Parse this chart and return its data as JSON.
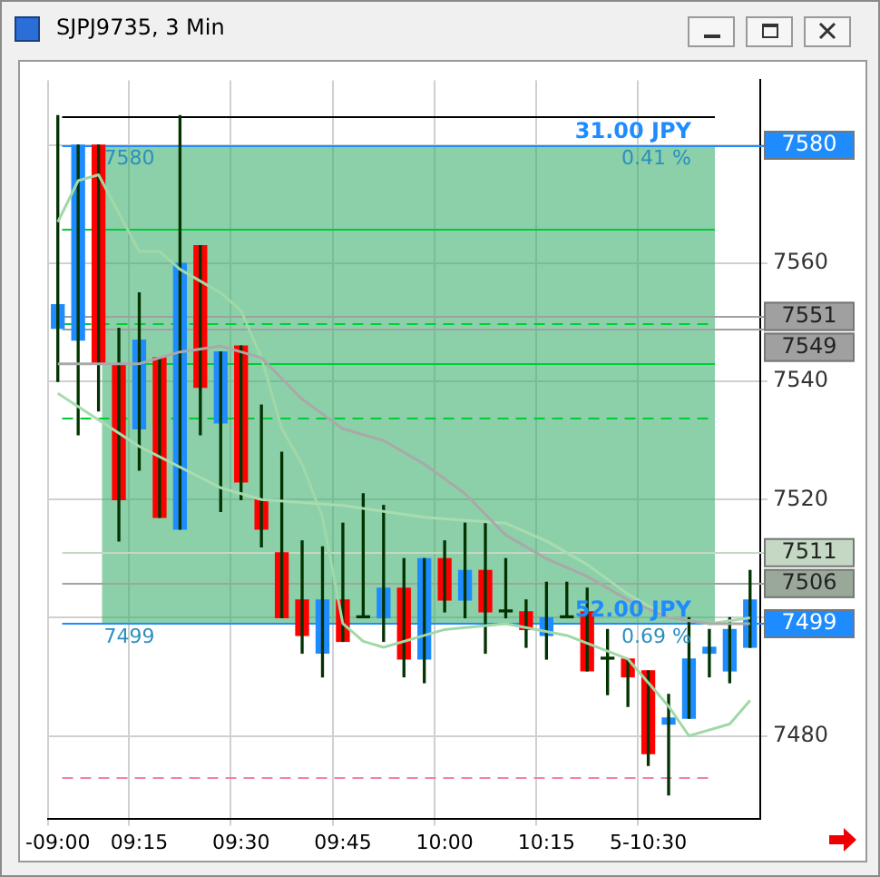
{
  "chart_data": {
    "type": "candlestick",
    "title": "SJPJ9735, 3 Min",
    "categories": [
      "-09:00",
      null,
      null,
      null,
      "09:15",
      null,
      null,
      null,
      null,
      "09:30",
      null,
      null,
      null,
      null,
      "09:45",
      null,
      null,
      null,
      null,
      "10:00",
      null,
      null,
      null,
      null,
      "10:15",
      null,
      null,
      null,
      null,
      "5-10:30",
      null,
      null,
      null,
      null,
      null
    ],
    "ohlc": [
      [
        7549,
        7585,
        7540,
        7553
      ],
      [
        7547,
        7580,
        7531,
        7580
      ],
      [
        7580,
        7580,
        7535,
        7543
      ],
      [
        7543,
        7549,
        7513,
        7520
      ],
      [
        7532,
        7555,
        7525,
        7547
      ],
      [
        7544,
        7544,
        7517,
        7517
      ],
      [
        7515,
        7585,
        7515,
        7560
      ],
      [
        7563,
        7563,
        7531,
        7539
      ],
      [
        7533,
        7545,
        7518,
        7545
      ],
      [
        7546,
        7546,
        7520,
        7523
      ],
      [
        7520,
        7536,
        7512,
        7515
      ],
      [
        7511,
        7528,
        7500,
        7500
      ],
      [
        7503,
        7513,
        7494,
        7497
      ],
      [
        7494,
        7512,
        7490,
        7503
      ],
      [
        7503,
        7516,
        7496,
        7496
      ],
      [
        7500,
        7521,
        7500,
        7500
      ],
      [
        7500,
        7519,
        7496,
        7505
      ],
      [
        7505,
        7510,
        7490,
        7493
      ],
      [
        7493,
        7510,
        7489,
        7510
      ],
      [
        7510,
        7513,
        7501,
        7503
      ],
      [
        7503,
        7516,
        7500,
        7508
      ],
      [
        7508,
        7516,
        7494,
        7501
      ],
      [
        7501,
        7510,
        7500,
        7501
      ],
      [
        7501,
        7503,
        7495,
        7498
      ],
      [
        7497,
        7506,
        7493,
        7500
      ],
      [
        7500,
        7506,
        7500,
        7500
      ],
      [
        7501,
        7505,
        7491,
        7491
      ],
      [
        7493,
        7498,
        7487,
        7493
      ],
      [
        7493,
        7493,
        7485,
        7490
      ],
      [
        7491,
        7491,
        7475,
        7477
      ],
      [
        7482,
        7487,
        7470,
        7483
      ],
      [
        7483,
        7500,
        7483,
        7493
      ],
      [
        7494,
        7498,
        7490,
        7495
      ],
      [
        7491,
        7500,
        7489,
        7498
      ],
      [
        7495,
        7508,
        7495,
        7503
      ]
    ],
    "colors": [
      "#1e8cff",
      "#1e8cff",
      "#ff0000",
      "#ff0000",
      "#1e8cff",
      "#ff0000",
      "#1e8cff",
      "#ff0000",
      "#1e8cff",
      "#ff0000",
      "#ff0000",
      "#ff0000",
      "#ff0000",
      "#1e8cff",
      "#ff0000",
      "#003300",
      "#1e8cff",
      "#ff0000",
      "#1e8cff",
      "#ff0000",
      "#1e8cff",
      "#ff0000",
      "#003300",
      "#ff0000",
      "#1e8cff",
      "#003300",
      "#ff0000",
      "#003300",
      "#ff0000",
      "#ff0000",
      "#1e8cff",
      "#1e8cff",
      "#1e8cff",
      "#1e8cff",
      "#1e8cff"
    ],
    "series": [
      {
        "type": "line",
        "color": "#a9a9a9",
        "values": [
          7543,
          null,
          7543,
          null,
          7543,
          null,
          7545,
          null,
          7546,
          null,
          7544,
          null,
          7537,
          null,
          7532,
          null,
          7530,
          null,
          7526,
          null,
          7521,
          null,
          7514,
          null,
          7510,
          null,
          7507,
          null,
          7503,
          null,
          7500,
          null,
          7499,
          null,
          7499
        ]
      },
      {
        "type": "line",
        "color": "#a8dcb0",
        "values": [
          7538,
          null,
          null,
          null,
          7529,
          null,
          null,
          null,
          7522,
          null,
          7520,
          null,
          null,
          null,
          7519,
          null,
          null,
          null,
          7517,
          null,
          null,
          null,
          7516,
          null,
          7513,
          null,
          7509,
          null,
          7504,
          null,
          7500,
          null,
          7499,
          null,
          7500
        ]
      },
      {
        "type": "line",
        "color": "#a0d8a8",
        "values": [
          7567,
          7574,
          7575,
          null,
          7562,
          7562,
          7559,
          null,
          7555,
          7552,
          7544,
          7532,
          7526,
          7517,
          7499,
          7496,
          7495,
          null,
          null,
          7498,
          null,
          null,
          7499,
          null,
          null,
          7497,
          null,
          null,
          7493,
          null,
          7485,
          7480,
          null,
          7482,
          7486
        ]
      }
    ],
    "ylim": [
      7466,
      7591
    ],
    "yticks": [
      7480,
      {
        "value": 7500,
        "label": null
      },
      7520,
      7540,
      7560,
      {
        "value": 7580,
        "label": null
      }
    ],
    "grid": true,
    "legend": false,
    "marker": "none",
    "bands": [
      {
        "axis": "y",
        "from": 7499,
        "to": 7580,
        "color": "#3fb070"
      }
    ],
    "ref_lines": [
      {
        "axis": "y",
        "value": 7585,
        "color": "#000000"
      },
      {
        "axis": "y",
        "value": 7566,
        "color": "#00cc33"
      },
      {
        "axis": "y",
        "value": 7550,
        "color": "#00cc33",
        "line_style": "dashed"
      },
      {
        "axis": "y",
        "value": 7543,
        "color": "#00cc33"
      },
      {
        "axis": "y",
        "value": 7534,
        "color": "#00cc33",
        "line_style": "dashed"
      },
      {
        "axis": "y",
        "value": 7473,
        "color": "#f080b0",
        "line_style": "dashed"
      },
      {
        "axis": "y",
        "value": 7580,
        "label": "7580",
        "color": "#1e8cff"
      },
      {
        "axis": "y",
        "value": 7549,
        "label": "7549",
        "color": "#a0a0a0"
      },
      {
        "axis": "y",
        "value": 7551,
        "label": "7551",
        "color": "#a0a0a0"
      },
      {
        "axis": "y",
        "value": 7511,
        "label": "7511",
        "color": "#c4d8c4"
      },
      {
        "axis": "y",
        "value": 7506,
        "label": "7506",
        "color": "#9aa89a"
      },
      {
        "axis": "y",
        "value": 7499,
        "label": "7499",
        "color": "#1e8cff"
      }
    ],
    "annotations": [
      {
        "text": "31.00 JPY",
        "y": 7580
      },
      {
        "text": "0.41 %",
        "y": 7580
      },
      {
        "text": "7580",
        "y": 7580
      },
      {
        "text": "52.00 JPY",
        "y": 7499
      },
      {
        "text": "0.69 %",
        "y": 7499
      },
      {
        "text": "7499",
        "y": 7499
      }
    ]
  }
}
